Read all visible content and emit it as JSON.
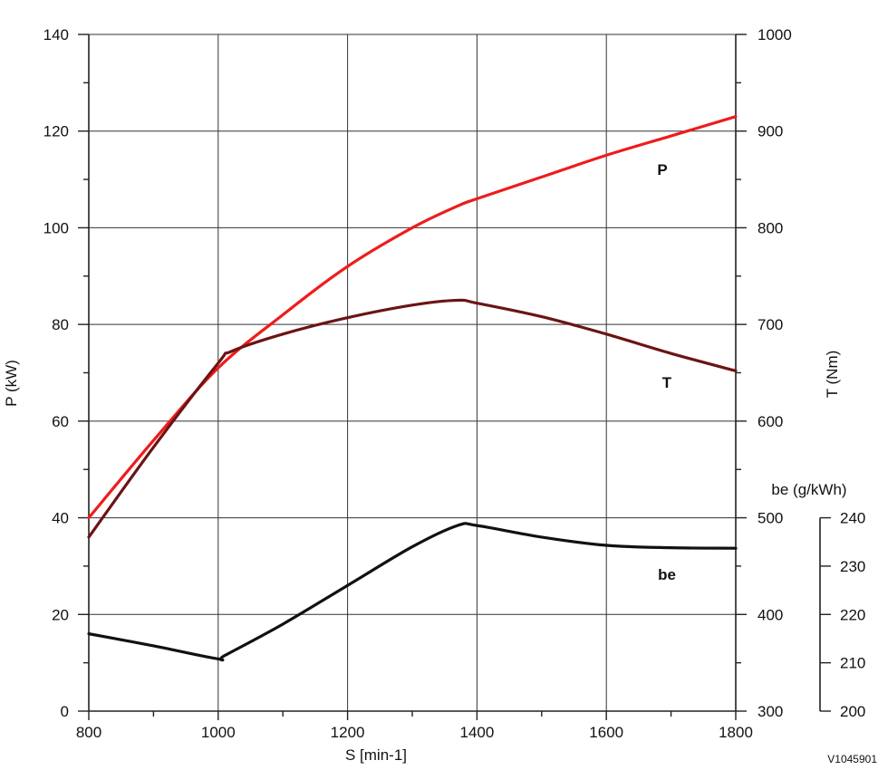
{
  "chart_data": {
    "type": "line",
    "xlabel": "S [min-1]",
    "x_ticks": [
      800,
      1000,
      1200,
      1400,
      1600,
      1800
    ],
    "xlim": [
      800,
      1800
    ],
    "grid": true,
    "axes": {
      "left": {
        "label": "P (kW)",
        "ticks": [
          0,
          20,
          40,
          60,
          80,
          100,
          120,
          140
        ],
        "range": [
          0,
          140
        ]
      },
      "right": {
        "label": "T (Nm)",
        "ticks": [
          300,
          400,
          500,
          600,
          700,
          800,
          900,
          1000
        ],
        "range": [
          300,
          1000
        ]
      },
      "be": {
        "label": "be (g/kWh)",
        "ticks": [
          200,
          210,
          220,
          230,
          240
        ],
        "range": [
          200,
          240
        ]
      }
    },
    "series": [
      {
        "name": "P",
        "axis": "left",
        "color": "#ee1c1c",
        "x": [
          800,
          900,
          1000,
          1100,
          1200,
          1300,
          1370,
          1400,
          1500,
          1600,
          1700,
          1800
        ],
        "y": [
          40,
          56,
          71,
          82,
          92,
          100,
          104.5,
          106,
          110.5,
          115,
          119,
          123
        ]
      },
      {
        "name": "T",
        "axis": "right",
        "color": "#6b1414",
        "x": [
          800,
          900,
          1000,
          1020,
          1100,
          1200,
          1300,
          1370,
          1400,
          1500,
          1600,
          1700,
          1800
        ],
        "y": [
          480,
          573,
          660,
          672,
          690,
          707,
          720,
          725,
          722,
          708,
          690,
          670,
          652
        ]
      },
      {
        "name": "be",
        "axis": "be",
        "color": "#111111",
        "x": [
          800,
          900,
          1000,
          1010,
          1100,
          1200,
          1300,
          1370,
          1400,
          1500,
          1600,
          1700,
          1800
        ],
        "y": [
          216,
          213.5,
          210.8,
          211.5,
          218,
          226,
          234,
          238.4,
          238.4,
          236,
          234.3,
          233.8,
          233.7
        ]
      }
    ],
    "annotations": [
      "P",
      "T",
      "be"
    ],
    "figure_id": "V1045901"
  }
}
